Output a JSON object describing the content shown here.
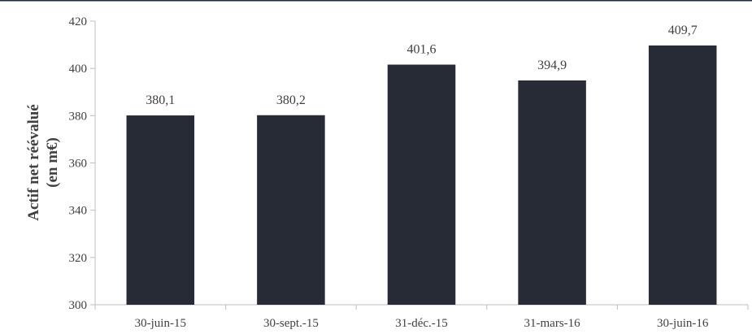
{
  "chart_data": {
    "type": "bar",
    "title": "",
    "xlabel": "",
    "ylabel_lines": [
      "Actif net réévalué",
      "(en m€)"
    ],
    "categories": [
      "30-juin-15",
      "30-sept.-15",
      "31-déc.-15",
      "31-mars-16",
      "30-juin-16"
    ],
    "values": [
      380.1,
      380.2,
      401.6,
      394.9,
      409.7
    ],
    "data_labels": [
      "380,1",
      "380,2",
      "401,6",
      "394,9",
      "409,7"
    ],
    "ylim": [
      300,
      420
    ],
    "yticks": [
      300,
      320,
      340,
      360,
      380,
      400,
      420
    ],
    "grid": false,
    "legend": "none",
    "colors": {
      "bar": "#262b36",
      "axis": "#bfbfbf",
      "text": "#404040",
      "top_rule": "#1f2a44"
    }
  }
}
